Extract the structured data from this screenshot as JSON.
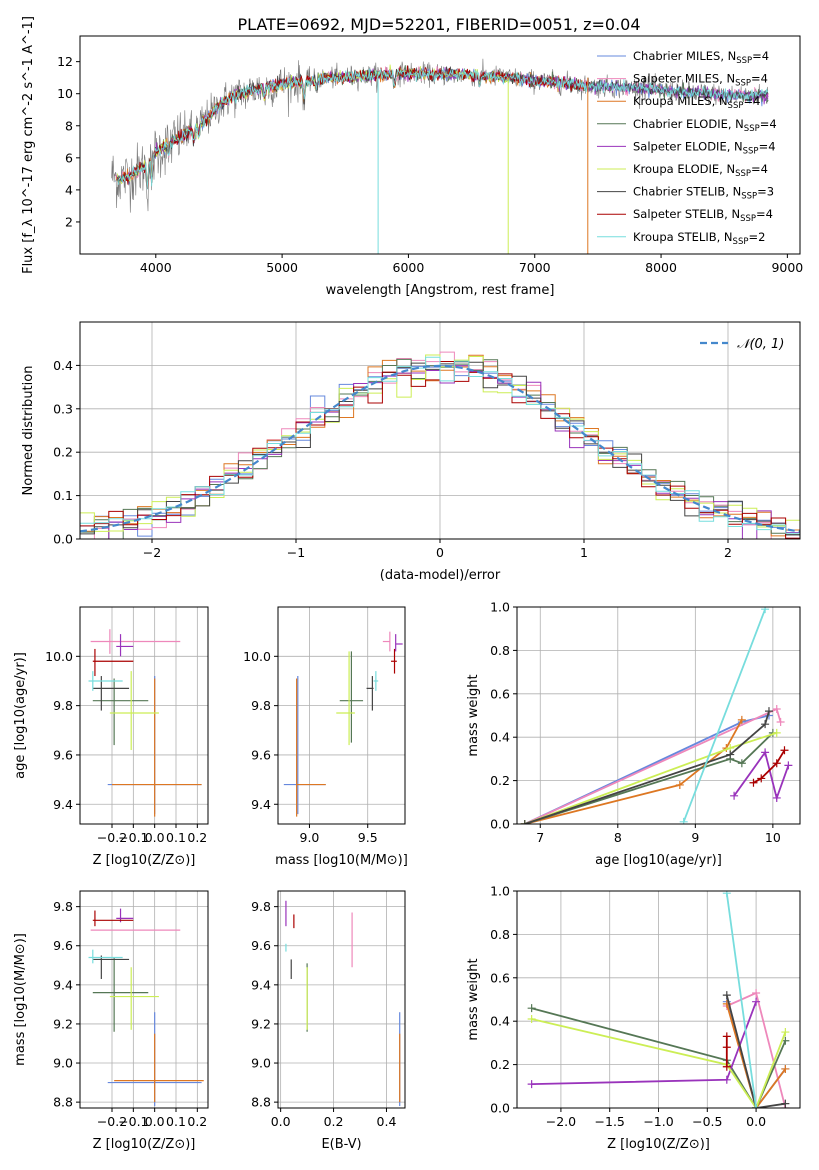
{
  "figure": {
    "title": "PLATE=0692, MJD=52201, FIBERID=0051, z=0.04",
    "fit_colors": [
      "#6688dd",
      "#ee88bb",
      "#dd7722",
      "#557755",
      "#9933bb",
      "#ccee55",
      "#444444",
      "#aa0000",
      "#77dddd"
    ],
    "fit_names": [
      "Chabrier MILES",
      "Salpeter MILES",
      "Kroupa MILES",
      "Chabrier ELODIE",
      "Salpeter ELODIE",
      "Kroupa ELODIE",
      "Chabrier STELIB",
      "Salpeter STELIB",
      "Kroupa STELIB"
    ]
  },
  "chart_data": [
    {
      "id": "spectrum",
      "type": "line",
      "title": "PLATE=0692, MJD=52201, FIBERID=0051, z=0.04",
      "xlabel": "wavelength [Angstrom, rest frame]",
      "ylabel": "Flux [f_λ 10^-17 erg cm^-2 s^-1 A^-1]",
      "xlim": [
        3400,
        9100
      ],
      "ylim": [
        0,
        13.6
      ],
      "xticks": [
        4000,
        5000,
        6000,
        7000,
        8000,
        9000
      ],
      "yticks": [
        2,
        4,
        6,
        8,
        10,
        12
      ],
      "grid": false,
      "legend_position": "upper-right",
      "data_color": "#777777",
      "continuum": {
        "x": [
          3650,
          3700,
          3800,
          3900,
          4000,
          4100,
          4200,
          4300,
          4400,
          4500,
          4600,
          4800,
          5000,
          5200,
          5400,
          5600,
          5800,
          6000,
          6200,
          6400,
          6600,
          6800,
          7000,
          7200,
          7400,
          7600,
          7800,
          8000,
          8200,
          8400,
          8600,
          8800
        ],
        "y": [
          5.0,
          4.6,
          4.9,
          5.4,
          6.3,
          6.9,
          7.3,
          7.8,
          8.4,
          9.3,
          9.8,
          10.3,
          10.6,
          10.8,
          11.0,
          11.1,
          11.2,
          11.3,
          11.2,
          11.2,
          11.1,
          11.0,
          10.8,
          10.7,
          10.5,
          10.4,
          10.4,
          10.2,
          10.1,
          10.0,
          9.9,
          9.9
        ]
      },
      "series": [
        {
          "name": "Chabrier MILES, N_SSP=4"
        },
        {
          "name": "Salpeter MILES, N_SSP=4"
        },
        {
          "name": "Kroupa MILES, N_SSP=4"
        },
        {
          "name": "Chabrier ELODIE, N_SSP=4"
        },
        {
          "name": "Salpeter ELODIE, N_SSP=4"
        },
        {
          "name": "Kroupa ELODIE, N_SSP=4"
        },
        {
          "name": "Chabrier STELIB, N_SSP=3"
        },
        {
          "name": "Salpeter STELIB, N_SSP=4"
        },
        {
          "name": "Kroupa STELIB, N_SSP=2"
        }
      ]
    },
    {
      "id": "residuals",
      "type": "line",
      "xlabel": "(data-model)/error",
      "ylabel": "Normed distribution",
      "xlim": [
        -2.5,
        2.5
      ],
      "ylim": [
        0,
        0.5
      ],
      "xticks": [
        -2,
        -1,
        0,
        1,
        2
      ],
      "yticks": [
        0.0,
        0.1,
        0.2,
        0.3,
        0.4
      ],
      "grid": true,
      "legend_position": "upper-right",
      "reference": {
        "name": "𝒩(0, 1)",
        "color": "#4488cc",
        "mu": 0,
        "sigma": 1
      }
    },
    {
      "id": "age_vs_Z",
      "type": "scatter",
      "xlabel": "Z [log10(Z/Z⊙)]",
      "ylabel": "age  [log10(age/yr)]",
      "xlim": [
        -0.35,
        0.25
      ],
      "ylim": [
        9.32,
        10.2
      ],
      "xticks": [
        -0.2,
        -0.1,
        0.0,
        0.1,
        0.2
      ],
      "yticks": [
        9.4,
        9.6,
        9.8,
        10.0
      ],
      "grid": true,
      "points": [
        {
          "x": 0.0,
          "y": 9.48,
          "xerr": [
            0.22,
            0.22
          ],
          "yerr": [
            0.12,
            0.44
          ]
        },
        {
          "x": -0.21,
          "y": 10.06,
          "xerr": [
            0.09,
            0.33
          ],
          "yerr": [
            0.05,
            0.05
          ]
        },
        {
          "x": 0.0,
          "y": 9.48,
          "xerr": [
            0.2,
            0.22
          ],
          "yerr": [
            0.13,
            0.43
          ]
        },
        {
          "x": -0.19,
          "y": 9.82,
          "xerr": [
            0.1,
            0.16
          ],
          "yerr": [
            0.18,
            0.09
          ]
        },
        {
          "x": -0.16,
          "y": 10.04,
          "xerr": [
            0.02,
            0.06
          ],
          "yerr": [
            0.04,
            0.05
          ]
        },
        {
          "x": -0.11,
          "y": 9.77,
          "xerr": [
            0.1,
            0.13
          ],
          "yerr": [
            0.15,
            0.17
          ]
        },
        {
          "x": -0.25,
          "y": 9.87,
          "xerr": [
            0.04,
            0.13
          ],
          "yerr": [
            0.09,
            0.05
          ]
        },
        {
          "x": -0.28,
          "y": 9.98,
          "xerr": [
            0.01,
            0.18
          ],
          "yerr": [
            0.06,
            0.05
          ]
        },
        {
          "x": -0.29,
          "y": 9.9,
          "xerr": [
            0.02,
            0.14
          ],
          "yerr": [
            0.04,
            0.04
          ]
        }
      ]
    },
    {
      "id": "age_vs_mass",
      "type": "scatter",
      "xlabel": "mass [log10(M/M⊙)]",
      "ylabel": "",
      "xlim": [
        8.73,
        9.82
      ],
      "ylim": [
        9.32,
        10.2
      ],
      "xticks": [
        9.0,
        9.5
      ],
      "yticks": [
        9.4,
        9.6,
        9.8,
        10.0
      ],
      "grid": true,
      "points": [
        {
          "x": 8.9,
          "y": 9.48,
          "xerr": [
            0.12,
            0.24
          ],
          "yerr": [
            0.12,
            0.44
          ]
        },
        {
          "x": 9.69,
          "y": 10.06,
          "xerr": [
            0.06,
            0.0
          ],
          "yerr": [
            0.04,
            0.04
          ]
        },
        {
          "x": 8.89,
          "y": 9.48,
          "xerr": [
            0.0,
            0.25
          ],
          "yerr": [
            0.13,
            0.43
          ]
        },
        {
          "x": 9.36,
          "y": 9.82,
          "xerr": [
            0.1,
            0.1
          ],
          "yerr": [
            0.17,
            0.2
          ]
        },
        {
          "x": 9.74,
          "y": 10.05,
          "xerr": [
            0.0,
            0.06
          ],
          "yerr": [
            0.03,
            0.04
          ]
        },
        {
          "x": 9.34,
          "y": 9.77,
          "xerr": [
            0.11,
            0.05
          ],
          "yerr": [
            0.13,
            0.25
          ]
        },
        {
          "x": 9.54,
          "y": 9.87,
          "xerr": [
            0.05,
            0.01
          ],
          "yerr": [
            0.09,
            0.05
          ]
        },
        {
          "x": 9.73,
          "y": 9.98,
          "xerr": [
            0.03,
            0.02
          ],
          "yerr": [
            0.05,
            0.05
          ]
        },
        {
          "x": 9.57,
          "y": 9.9,
          "xerr": [
            0.02,
            0.02
          ],
          "yerr": [
            0.04,
            0.04
          ]
        }
      ]
    },
    {
      "id": "weight_vs_age",
      "type": "line",
      "xlabel": "age  [log10(age/yr)]",
      "ylabel": "mass weight",
      "xlim": [
        6.7,
        10.35
      ],
      "ylim": [
        0,
        1.0
      ],
      "xticks": [
        7,
        8,
        9,
        10
      ],
      "yticks": [
        0.0,
        0.2,
        0.4,
        0.6,
        0.8,
        1.0
      ],
      "grid": true,
      "series": [
        {
          "x": [
            6.8,
            9.6,
            9.95
          ],
          "y": [
            0.0,
            0.47,
            0.5
          ]
        },
        {
          "x": [
            6.8,
            10.05,
            10.1
          ],
          "y": [
            0.0,
            0.53,
            0.47
          ]
        },
        {
          "x": [
            6.8,
            8.8,
            9.4,
            9.6
          ],
          "y": [
            0.0,
            0.18,
            0.35,
            0.48
          ]
        },
        {
          "x": [
            6.8,
            9.45,
            9.6,
            10.0
          ],
          "y": [
            0.0,
            0.3,
            0.28,
            0.42
          ]
        },
        {
          "x": [
            9.5,
            9.9,
            10.05,
            10.2
          ],
          "y": [
            0.13,
            0.33,
            0.12,
            0.27
          ]
        },
        {
          "x": [
            6.8,
            9.45,
            10.05
          ],
          "y": [
            0.0,
            0.35,
            0.42
          ]
        },
        {
          "x": [
            6.8,
            9.45,
            9.9,
            9.95
          ],
          "y": [
            0.0,
            0.32,
            0.46,
            0.52
          ]
        },
        {
          "x": [
            9.75,
            9.85,
            10.05,
            10.15
          ],
          "y": [
            0.19,
            0.21,
            0.28,
            0.34
          ]
        },
        {
          "x": [
            8.85,
            9.9
          ],
          "y": [
            0.01,
            0.99
          ]
        }
      ]
    },
    {
      "id": "mass_vs_Z",
      "type": "scatter",
      "xlabel": "Z [log10(Z/Z⊙)]",
      "ylabel": "mass [log10(M/M⊙)]",
      "xlim": [
        -0.35,
        0.25
      ],
      "ylim": [
        8.77,
        9.88
      ],
      "xticks": [
        -0.2,
        -0.1,
        0.0,
        0.1,
        0.2
      ],
      "yticks": [
        8.8,
        9.0,
        9.2,
        9.4,
        9.6,
        9.8
      ],
      "grid": true,
      "points": [
        {
          "x": 0.0,
          "y": 8.9,
          "xerr": [
            0.22,
            0.22
          ],
          "yerr": [
            0.12,
            0.36
          ]
        },
        {
          "x": -0.21,
          "y": 9.68,
          "xerr": [
            0.09,
            0.33
          ],
          "yerr": [
            0.0,
            0.0
          ]
        },
        {
          "x": 0.0,
          "y": 8.91,
          "xerr": [
            0.19,
            0.23
          ],
          "yerr": [
            0.11,
            0.24
          ]
        },
        {
          "x": -0.19,
          "y": 9.36,
          "xerr": [
            0.1,
            0.16
          ],
          "yerr": [
            0.2,
            0.18
          ]
        },
        {
          "x": -0.16,
          "y": 9.74,
          "xerr": [
            0.02,
            0.06
          ],
          "yerr": [
            0.02,
            0.05
          ]
        },
        {
          "x": -0.11,
          "y": 9.34,
          "xerr": [
            0.1,
            0.13
          ],
          "yerr": [
            0.17,
            0.15
          ]
        },
        {
          "x": -0.25,
          "y": 9.53,
          "xerr": [
            0.04,
            0.13
          ],
          "yerr": [
            0.1,
            0.02
          ]
        },
        {
          "x": -0.28,
          "y": 9.73,
          "xerr": [
            0.01,
            0.18
          ],
          "yerr": [
            0.03,
            0.05
          ]
        },
        {
          "x": -0.29,
          "y": 9.54,
          "xerr": [
            0.02,
            0.14
          ],
          "yerr": [
            0.03,
            0.04
          ]
        }
      ]
    },
    {
      "id": "mass_vs_ebv",
      "type": "scatter",
      "xlabel": "E(B-V)",
      "ylabel": "",
      "xlim": [
        -0.01,
        0.47
      ],
      "ylim": [
        8.77,
        9.88
      ],
      "xticks": [
        0.0,
        0.2,
        0.4
      ],
      "yticks": [
        8.8,
        9.0,
        9.2,
        9.4,
        9.6,
        9.8
      ],
      "grid": true,
      "points": [
        {
          "x": 0.45,
          "y": 8.9,
          "yerr": [
            0.12,
            0.36
          ]
        },
        {
          "x": 0.27,
          "y": 9.68,
          "yerr": [
            0.19,
            0.09
          ]
        },
        {
          "x": 0.45,
          "y": 8.91,
          "yerr": [
            0.11,
            0.24
          ]
        },
        {
          "x": 0.1,
          "y": 9.36,
          "yerr": [
            0.2,
            0.15
          ]
        },
        {
          "x": 0.02,
          "y": 9.74,
          "yerr": [
            0.04,
            0.09
          ]
        },
        {
          "x": 0.1,
          "y": 9.34,
          "yerr": [
            0.17,
            0.15
          ]
        },
        {
          "x": 0.04,
          "y": 9.53,
          "yerr": [
            0.1,
            0.0
          ]
        },
        {
          "x": 0.05,
          "y": 9.73,
          "yerr": [
            0.04,
            0.03
          ]
        },
        {
          "x": 0.02,
          "y": 9.59,
          "yerr": [
            0.02,
            0.02
          ]
        }
      ]
    },
    {
      "id": "weight_vs_Z",
      "type": "line",
      "xlabel": "Z [log10(Z/Z⊙)]",
      "ylabel": "mass weight",
      "xlim": [
        -2.45,
        0.45
      ],
      "ylim": [
        0,
        1.0
      ],
      "xticks": [
        -2.0,
        -1.5,
        -1.0,
        -0.5,
        0.0
      ],
      "yticks": [
        0.0,
        0.2,
        0.4,
        0.6,
        0.8,
        1.0
      ],
      "grid": true,
      "series": [
        {
          "x": [
            -0.3,
            0.0,
            0.3
          ],
          "y": [
            0.49,
            0.0,
            0.18
          ]
        },
        {
          "x": [
            -0.3,
            0.0,
            0.3
          ],
          "y": [
            0.47,
            0.53,
            0.0
          ]
        },
        {
          "x": [
            -0.3,
            0.0,
            0.3
          ],
          "y": [
            0.48,
            0.0,
            0.18
          ]
        },
        {
          "x": [
            -2.3,
            -0.3,
            0.0,
            0.3
          ],
          "y": [
            0.46,
            0.22,
            0.0,
            0.31
          ]
        },
        {
          "x": [
            -2.3,
            -0.3,
            0.0
          ],
          "y": [
            0.11,
            0.13,
            0.49
          ]
        },
        {
          "x": [
            -2.3,
            -0.3,
            0.0,
            0.3
          ],
          "y": [
            0.41,
            0.2,
            0.0,
            0.35
          ]
        },
        {
          "x": [
            -0.3,
            0.0,
            0.3
          ],
          "y": [
            0.52,
            0.0,
            0.02
          ]
        },
        {
          "x": [
            -0.3,
            -0.3,
            -0.3
          ],
          "y": [
            0.19,
            0.33,
            0.28
          ]
        },
        {
          "x": [
            -0.3,
            0.0
          ],
          "y": [
            0.99,
            0.0
          ]
        }
      ]
    }
  ]
}
